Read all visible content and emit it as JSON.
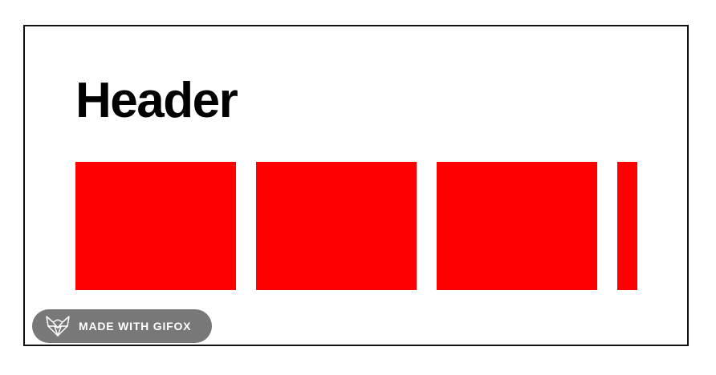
{
  "content": {
    "header": "Header"
  },
  "boxes": {
    "count_visible": 4,
    "color": "#ff0000"
  },
  "badge": {
    "label": "MADE WITH GIFOX",
    "icon": "fox-icon"
  },
  "colors": {
    "frame_border": "#111111",
    "background": "#ffffff",
    "badge_bg": "#5a5a5a",
    "badge_text": "#ffffff"
  }
}
